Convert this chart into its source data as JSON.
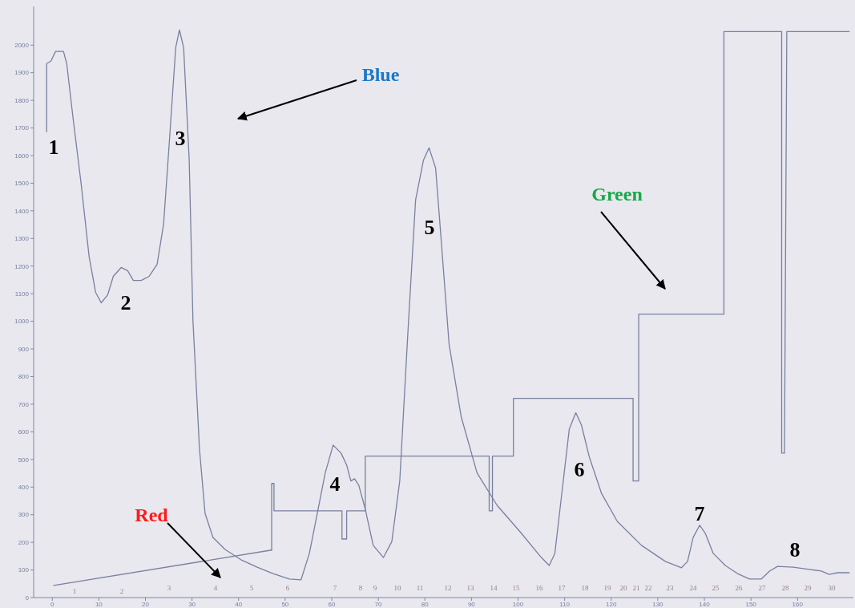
{
  "chart_data": {
    "type": "line",
    "xlim": [
      -4,
      172
    ],
    "ylim": [
      0,
      2140
    ],
    "xticks": [
      0,
      10,
      20,
      30,
      40,
      50,
      60,
      70,
      80,
      90,
      100,
      110,
      120,
      130,
      140,
      150,
      160
    ],
    "yticks": [
      0,
      100,
      200,
      300,
      400,
      500,
      600,
      700,
      800,
      900,
      1000,
      1100,
      1200,
      1300,
      1400,
      1500,
      1600,
      1700,
      1800,
      1900,
      2000
    ],
    "grid": false,
    "marker": "none",
    "line_style": "solid",
    "series": [
      {
        "color": "#7a80a0",
        "x": [
          -1.2,
          -1.2,
          -0.3,
          0.7,
          2.4,
          3.1,
          4.5,
          6.2,
          7.9,
          9.3,
          10.5,
          11.9,
          13.1,
          14.8,
          16.2,
          17.4,
          19.1,
          20.8,
          22.5,
          23.9,
          25.1,
          26.5,
          27.3,
          28.2,
          29.4,
          30.2,
          31.6,
          32.8,
          34.5,
          37.1,
          40.5,
          44.0,
          47.4,
          50.9,
          53.4,
          55.2,
          56.9,
          58.6,
          60.3,
          62.0,
          63.2,
          64.1,
          64.9,
          65.8,
          67.2,
          68.9,
          71.1,
          72.9,
          74.6,
          76.3,
          78.0,
          79.7,
          80.9,
          82.3,
          83.5,
          85.2,
          87.8,
          91.2,
          95.5,
          100.7,
          105.0,
          106.7,
          107.9,
          109.3,
          111.0,
          112.4,
          113.6,
          115.3,
          117.9,
          121.3,
          126.5,
          131.6,
          135.1,
          136.4,
          137.6,
          139.0,
          140.2,
          141.9,
          144.5,
          147.1,
          149.7,
          152.2,
          154.0,
          155.7,
          159.1,
          162.5,
          165.1,
          166.8,
          168.6,
          171.1
        ],
        "values": [
          1686,
          1933,
          1942,
          1977,
          1977,
          1933,
          1730,
          1497,
          1235,
          1105,
          1067,
          1096,
          1163,
          1195,
          1183,
          1148,
          1148,
          1163,
          1206,
          1352,
          1642,
          1991,
          2055,
          1991,
          1584,
          1003,
          538,
          305,
          218,
          174,
          137,
          110,
          87,
          67,
          64,
          160,
          305,
          451,
          552,
          523,
          480,
          422,
          430,
          407,
          320,
          189,
          145,
          203,
          422,
          945,
          1439,
          1584,
          1628,
          1555,
          1294,
          916,
          654,
          451,
          334,
          233,
          145,
          116,
          160,
          363,
          610,
          669,
          625,
          509,
          378,
          276,
          189,
          131,
          108,
          131,
          218,
          262,
          233,
          160,
          116,
          87,
          67,
          67,
          96,
          113,
          110,
          102,
          96,
          84,
          90,
          90
        ]
      },
      {
        "color": "#7a80a0",
        "x": [
          0.3,
          47.1
        ],
        "values": [
          44,
          172
        ]
      },
      {
        "color": "#7a80a0",
        "x": [
          47.1,
          47.1,
          47.6,
          47.6,
          62.2,
          62.2,
          63.2,
          63.2,
          67.2,
          67.2,
          93.8,
          93.8,
          94.5,
          94.5,
          99.0,
          99.0,
          124.7,
          124.7,
          125.9,
          125.9,
          144.2,
          144.2,
          156.6,
          156.6,
          157.2,
          157.7,
          171.1
        ],
        "values": [
          172,
          413,
          413,
          314,
          314,
          212,
          212,
          314,
          314,
          512,
          512,
          314,
          314,
          512,
          512,
          721,
          721,
          422,
          422,
          1026,
          1026,
          2049,
          2049,
          523,
          523,
          2049,
          2049
        ]
      }
    ],
    "annotations": [
      "Blue",
      "Red",
      "Green",
      "1",
      "2",
      "3",
      "4",
      "5",
      "6",
      "7",
      "8",
      "1",
      "2",
      "3",
      "4",
      "5",
      "6",
      "7",
      "8",
      "9",
      "10",
      "11",
      "12",
      "13",
      "14",
      "15",
      "16",
      "17",
      "18",
      "19",
      "20",
      "21",
      "22",
      "23",
      "24",
      "25",
      "26",
      "27",
      "28",
      "29",
      "30"
    ]
  }
}
